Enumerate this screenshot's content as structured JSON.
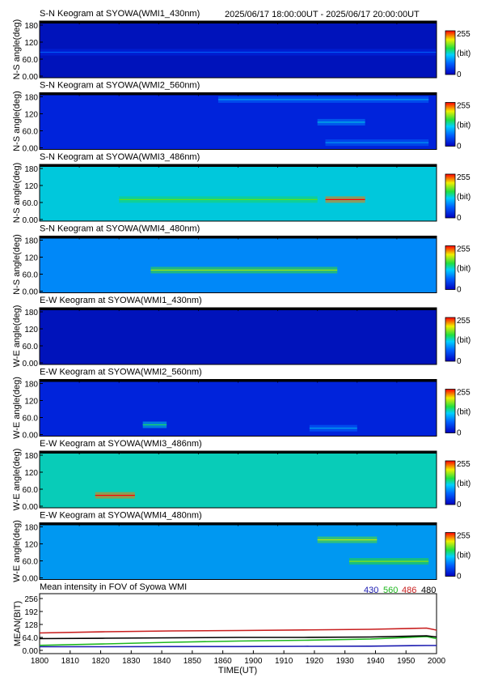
{
  "header": {
    "time_range": "2025/06/17 18:00:00UT - 2025/06/17 20:00:00UT"
  },
  "colorbar": {
    "max_label": "255",
    "unit_label": "(bit)",
    "min_label": "0"
  },
  "panels": [
    {
      "title": "S-N Keogram at SYOWA(WMI1_430nm)",
      "ylabel": "N-S angle(deg)",
      "yticks": [
        "180",
        "120",
        "60.0",
        "0.00"
      ],
      "base_level": 0.07,
      "features": [
        {
          "y": 0.55,
          "x1": 0.0,
          "x2": 1.0,
          "level": 0.14
        }
      ]
    },
    {
      "title": "S-N Keogram at SYOWA(WMI2_560nm)",
      "ylabel": "N-S angle(deg)",
      "yticks": [
        "180",
        "120",
        "60.0",
        "0.00"
      ],
      "base_level": 0.13,
      "features": [
        {
          "y": 0.12,
          "x1": 0.45,
          "x2": 0.98,
          "level": 0.28
        },
        {
          "y": 0.52,
          "x1": 0.7,
          "x2": 0.82,
          "level": 0.32
        },
        {
          "y": 0.88,
          "x1": 0.72,
          "x2": 0.98,
          "level": 0.26
        }
      ]
    },
    {
      "title": "S-N Keogram at SYOWA(WMI3_486nm)",
      "ylabel": "N-S angle(deg)",
      "yticks": [
        "180",
        "120",
        "60.0",
        "0.00"
      ],
      "base_level": 0.45,
      "features": [
        {
          "y": 0.62,
          "x1": 0.72,
          "x2": 0.82,
          "level": 0.9
        },
        {
          "y": 0.62,
          "x1": 0.2,
          "x2": 0.7,
          "level": 0.55
        }
      ]
    },
    {
      "title": "S-N Keogram at SYOWA(WMI4_480nm)",
      "ylabel": "N-S angle(deg)",
      "yticks": [
        "180",
        "120",
        "60.0",
        "0.00"
      ],
      "base_level": 0.33,
      "features": [
        {
          "y": 0.6,
          "x1": 0.28,
          "x2": 0.75,
          "level": 0.62
        }
      ]
    },
    {
      "title": "E-W Keogram at SYOWA(WMI1_430nm)",
      "ylabel": "W-E angle(deg)",
      "yticks": [
        "180",
        "120",
        "60.0",
        "0.00"
      ],
      "base_level": 0.07,
      "features": []
    },
    {
      "title": "E-W Keogram at SYOWA(WMI2_560nm)",
      "ylabel": "W-E angle(deg)",
      "yticks": [
        "180",
        "120",
        "60.0",
        "0.00"
      ],
      "base_level": 0.13,
      "features": [
        {
          "y": 0.8,
          "x1": 0.26,
          "x2": 0.32,
          "level": 0.45
        },
        {
          "y": 0.86,
          "x1": 0.68,
          "x2": 0.8,
          "level": 0.28
        }
      ]
    },
    {
      "title": "E-W Keogram at SYOWA(WMI3_486nm)",
      "ylabel": "W-E angle(deg)",
      "yticks": [
        "180",
        "120",
        "60.0",
        "0.00"
      ],
      "base_level": 0.48,
      "features": [
        {
          "y": 0.78,
          "x1": 0.14,
          "x2": 0.24,
          "level": 0.9
        }
      ]
    },
    {
      "title": "E-W Keogram at SYOWA(WMI4_480nm)",
      "ylabel": "W-E angle(deg)",
      "yticks": [
        "180",
        "120",
        "60.0",
        "0.00"
      ],
      "base_level": 0.36,
      "features": [
        {
          "y": 0.3,
          "x1": 0.7,
          "x2": 0.85,
          "level": 0.65
        },
        {
          "y": 0.68,
          "x1": 0.78,
          "x2": 0.98,
          "level": 0.6
        }
      ]
    }
  ],
  "chart_data": {
    "type": "line",
    "title": "Mean intensity in FOV of Syowa WMI",
    "xlabel": "TIME(UT)",
    "ylabel": "MEAN(BIT)",
    "xlim": [
      1800,
      2000
    ],
    "ylim": [
      0,
      256
    ],
    "x_ticks": [
      "1800",
      "1810",
      "1820",
      "1830",
      "1840",
      "1850",
      "1860",
      "1900",
      "1910",
      "1920",
      "1930",
      "1940",
      "1950",
      "2000"
    ],
    "y_ticks": [
      "256",
      "192",
      "128",
      "64.0",
      "0.00"
    ],
    "x_minutes": [
      0,
      20,
      40,
      60,
      80,
      100,
      117,
      120
    ],
    "series": [
      {
        "name": "430",
        "color": "#1a1ab0",
        "values": [
          18,
          18,
          19,
          19,
          20,
          21,
          24,
          24
        ]
      },
      {
        "name": "560",
        "color": "#1fb81f",
        "values": [
          25,
          32,
          40,
          46,
          50,
          56,
          68,
          58
        ]
      },
      {
        "name": "486",
        "color": "#c81e1e",
        "values": [
          86,
          92,
          96,
          98,
          101,
          104,
          110,
          100
        ]
      },
      {
        "name": "480",
        "color": "#000000",
        "values": [
          58,
          60,
          62,
          64,
          64,
          66,
          72,
          66
        ]
      }
    ]
  }
}
